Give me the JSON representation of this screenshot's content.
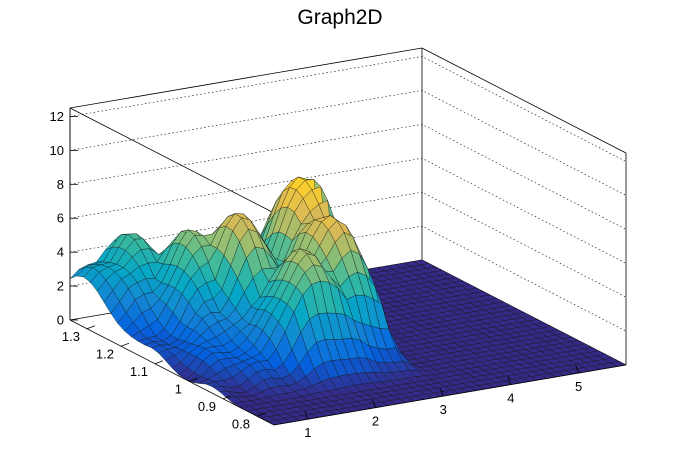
{
  "chart_data": {
    "type": "surface",
    "title": "Graph2D",
    "xlabel": "",
    "ylabel": "",
    "zlabel": "",
    "x_range": [
      0.5,
      5.7
    ],
    "y_range": [
      0.75,
      1.35
    ],
    "z_range": [
      0,
      12.5
    ],
    "x_ticks": [
      "1",
      "2",
      "3",
      "4",
      "5"
    ],
    "y_ticks": [
      "0.8",
      "0.9",
      "1",
      "1.1",
      "1.2",
      "1.3"
    ],
    "z_ticks": [
      "0",
      "2",
      "4",
      "6",
      "8",
      "10",
      "12"
    ],
    "grid": true,
    "colormap": [
      "#352a87",
      "#0363e1",
      "#1485d4",
      "#06a7c6",
      "#38b99e",
      "#92bf73",
      "#d9ba56",
      "#fcce2e",
      "#f9fb0e"
    ],
    "surface_peaks": [
      {
        "x": 3.0,
        "y": 1.15,
        "z": 8.8
      },
      {
        "x": 2.8,
        "y": 1.05,
        "z": 7.6
      },
      {
        "x": 2.2,
        "y": 1.0,
        "z": 6.3
      },
      {
        "x": 2.0,
        "y": 1.15,
        "z": 7.3
      },
      {
        "x": 1.6,
        "y": 1.2,
        "z": 5.8
      },
      {
        "x": 1.2,
        "y": 1.3,
        "z": 4.8
      },
      {
        "x": 0.9,
        "y": 1.3,
        "z": 3.9
      }
    ],
    "surface_note": "nonzero region approx x 0.5–3.3, y 0.85–1.35; zero elsewhere"
  }
}
